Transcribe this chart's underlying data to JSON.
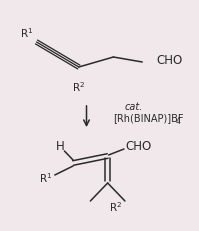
{
  "background_color": "#f0e8ea",
  "line_color": "#2a2a2a",
  "text_color": "#2a2a2a",
  "catalyst_line1": "cat.",
  "catalyst_line2": "[Rh(BINAP)]BF",
  "catalyst_sub": "4",
  "fontsize_main": 8.5,
  "fontsize_label": 7.5,
  "fontsize_sub": 5.5,
  "fontsize_cat": 7.0
}
